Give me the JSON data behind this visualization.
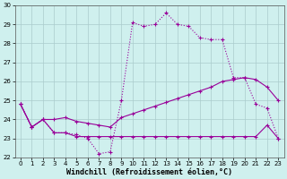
{
  "xlabel": "Windchill (Refroidissement éolien,°C)",
  "bg_color": "#cff0ee",
  "line_color": "#990099",
  "xlim": [
    -0.5,
    23.5
  ],
  "ylim": [
    22,
    30
  ],
  "yticks": [
    22,
    23,
    24,
    25,
    26,
    27,
    28,
    29,
    30
  ],
  "xticks": [
    0,
    1,
    2,
    3,
    4,
    5,
    6,
    7,
    8,
    9,
    10,
    11,
    12,
    13,
    14,
    15,
    16,
    17,
    18,
    19,
    20,
    21,
    22,
    23
  ],
  "series1_x": [
    0,
    1,
    2,
    3,
    4,
    5,
    6,
    7,
    8,
    9,
    10,
    11,
    12,
    13,
    14,
    15,
    16,
    17,
    18,
    19,
    20,
    21,
    22,
    23
  ],
  "series1_y": [
    24.8,
    23.6,
    24.0,
    23.3,
    23.3,
    23.2,
    23.0,
    22.2,
    22.3,
    25.0,
    29.1,
    28.9,
    29.0,
    29.6,
    29.0,
    28.9,
    28.3,
    28.2,
    28.2,
    26.2,
    26.2,
    24.8,
    24.6,
    23.0
  ],
  "series2_x": [
    0,
    1,
    2,
    3,
    4,
    5,
    6,
    7,
    8,
    9,
    10,
    11,
    12,
    13,
    14,
    15,
    16,
    17,
    18,
    19,
    20,
    21,
    22,
    23
  ],
  "series2_y": [
    24.8,
    23.6,
    24.0,
    24.0,
    24.1,
    23.9,
    23.8,
    23.7,
    23.6,
    24.1,
    24.3,
    24.5,
    24.7,
    24.9,
    25.1,
    25.3,
    25.5,
    25.7,
    26.0,
    26.1,
    26.2,
    26.1,
    25.7,
    25.0
  ],
  "series3_x": [
    0,
    1,
    2,
    3,
    4,
    5,
    6,
    7,
    8,
    9,
    10,
    11,
    12,
    13,
    14,
    15,
    16,
    17,
    18,
    19,
    20,
    21,
    22,
    23
  ],
  "series3_y": [
    24.8,
    23.6,
    24.0,
    23.3,
    23.3,
    23.1,
    23.1,
    23.1,
    23.1,
    23.1,
    23.1,
    23.1,
    23.1,
    23.1,
    23.1,
    23.1,
    23.1,
    23.1,
    23.1,
    23.1,
    23.1,
    23.1,
    23.7,
    23.0
  ],
  "xlabel_fontsize": 6,
  "tick_fontsize": 5,
  "grid_color": "#aacccc"
}
